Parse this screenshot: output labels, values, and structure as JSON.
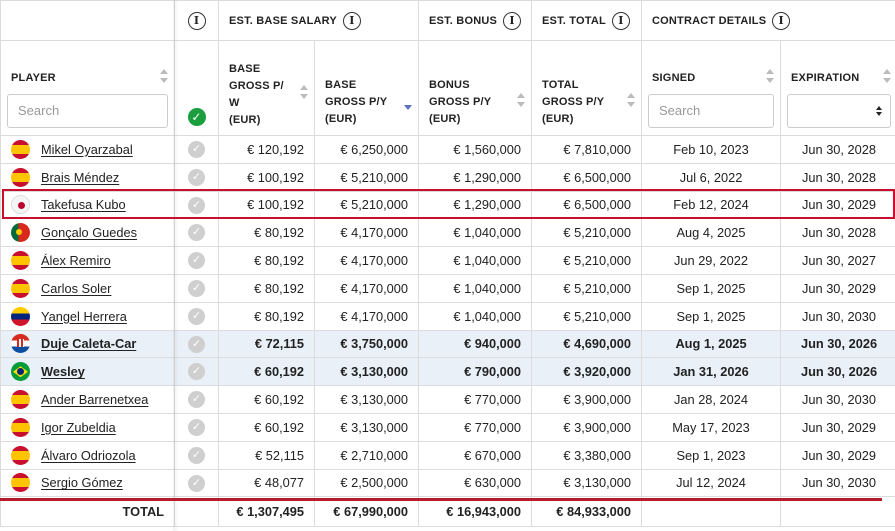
{
  "groups": {
    "base_salary": "EST. BASE SALARY",
    "bonus": "EST. BONUS",
    "total": "EST. TOTAL",
    "contract": "CONTRACT DETAILS"
  },
  "columns": {
    "player": "PLAYER",
    "weekly": [
      "BASE",
      "GROSS P/",
      "W",
      "(EUR)"
    ],
    "yearly": [
      "BASE",
      "GROSS P/Y",
      "(EUR)"
    ],
    "bonus": [
      "BONUS",
      "GROSS P/Y",
      "(EUR)"
    ],
    "total": [
      "TOTAL",
      "GROSS P/Y",
      "(EUR)"
    ],
    "signed": "SIGNED",
    "expiration": "EXPIRATION"
  },
  "search": {
    "player_placeholder": "Search",
    "signed_placeholder": "Search"
  },
  "icons": {
    "info": "info-icon",
    "check": "check-icon",
    "sort": "sort-icon"
  },
  "colors": {
    "accent_red": "#c8102e",
    "check_green": "#1b9e3e",
    "highlight_row": "#e9f0f8",
    "sort_active": "#5b6fc4"
  },
  "rows": [
    {
      "name": "Mikel Oyarzabal",
      "flag": "es",
      "weekly": "€ 120,192",
      "yearly": "€ 6,250,000",
      "bonus": "€ 1,560,000",
      "total": "€ 7,810,000",
      "signed": "Feb 10, 2023",
      "expiration": "Jun 30, 2028"
    },
    {
      "name": "Brais Méndez",
      "flag": "es",
      "weekly": "€ 100,192",
      "yearly": "€ 5,210,000",
      "bonus": "€ 1,290,000",
      "total": "€ 6,500,000",
      "signed": "Jul 6, 2022",
      "expiration": "Jun 30, 2028"
    },
    {
      "name": "Takefusa Kubo",
      "flag": "jp",
      "weekly": "€ 100,192",
      "yearly": "€ 5,210,000",
      "bonus": "€ 1,290,000",
      "total": "€ 6,500,000",
      "signed": "Feb 12, 2024",
      "expiration": "Jun 30, 2029"
    },
    {
      "name": "Gonçalo Guedes",
      "flag": "pt",
      "weekly": "€ 80,192",
      "yearly": "€ 4,170,000",
      "bonus": "€ 1,040,000",
      "total": "€ 5,210,000",
      "signed": "Aug 4, 2025",
      "expiration": "Jun 30, 2028"
    },
    {
      "name": "Álex Remiro",
      "flag": "es",
      "weekly": "€ 80,192",
      "yearly": "€ 4,170,000",
      "bonus": "€ 1,040,000",
      "total": "€ 5,210,000",
      "signed": "Jun 29, 2022",
      "expiration": "Jun 30, 2027"
    },
    {
      "name": "Carlos Soler",
      "flag": "es",
      "weekly": "€ 80,192",
      "yearly": "€ 4,170,000",
      "bonus": "€ 1,040,000",
      "total": "€ 5,210,000",
      "signed": "Sep 1, 2025",
      "expiration": "Jun 30, 2029"
    },
    {
      "name": "Yangel Herrera",
      "flag": "ve",
      "weekly": "€ 80,192",
      "yearly": "€ 4,170,000",
      "bonus": "€ 1,040,000",
      "total": "€ 5,210,000",
      "signed": "Sep 1, 2025",
      "expiration": "Jun 30, 2030"
    },
    {
      "name": "Duje Caleta-Car",
      "flag": "hr",
      "weekly": "€ 72,115",
      "yearly": "€ 3,750,000",
      "bonus": "€ 940,000",
      "total": "€ 4,690,000",
      "signed": "Aug 1, 2025",
      "expiration": "Jun 30, 2026",
      "highlight": true
    },
    {
      "name": "Wesley",
      "flag": "br",
      "weekly": "€ 60,192",
      "yearly": "€ 3,130,000",
      "bonus": "€ 790,000",
      "total": "€ 3,920,000",
      "signed": "Jan 31, 2026",
      "expiration": "Jun 30, 2026",
      "highlight": true
    },
    {
      "name": "Ander Barrenetxea",
      "flag": "es",
      "weekly": "€ 60,192",
      "yearly": "€ 3,130,000",
      "bonus": "€ 770,000",
      "total": "€ 3,900,000",
      "signed": "Jan 28, 2024",
      "expiration": "Jun 30, 2030"
    },
    {
      "name": "Igor Zubeldia",
      "flag": "es",
      "weekly": "€ 60,192",
      "yearly": "€ 3,130,000",
      "bonus": "€ 770,000",
      "total": "€ 3,900,000",
      "signed": "May 17, 2023",
      "expiration": "Jun 30, 2029"
    },
    {
      "name": "Álvaro Odriozola",
      "flag": "es",
      "weekly": "€ 52,115",
      "yearly": "€ 2,710,000",
      "bonus": "€ 670,000",
      "total": "€ 3,380,000",
      "signed": "Sep 1, 2023",
      "expiration": "Jun 30, 2029"
    },
    {
      "name": "Sergio Gómez",
      "flag": "es",
      "weekly": "€ 48,077",
      "yearly": "€ 2,500,000",
      "bonus": "€ 630,000",
      "total": "€ 3,130,000",
      "signed": "Jul 12, 2024",
      "expiration": "Jun 30, 2030"
    }
  ],
  "totals": {
    "label": "TOTAL",
    "weekly": "€ 1,307,495",
    "yearly": "€ 67,990,000",
    "bonus": "€ 16,943,000",
    "total": "€ 84,933,000"
  }
}
